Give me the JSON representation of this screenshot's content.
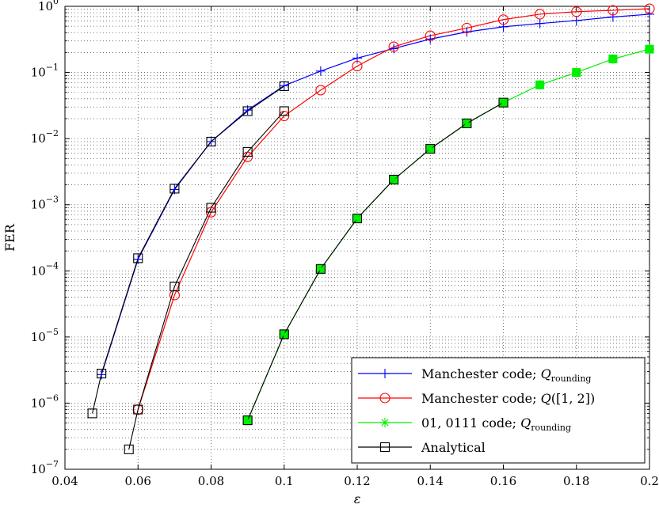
{
  "chart_data": {
    "type": "line",
    "xlabel": "ε",
    "ylabel": "FER",
    "xlim": [
      0.04,
      0.2
    ],
    "ylim": [
      1e-07,
      1
    ],
    "yscale": "log",
    "grid": true,
    "legend_position": "bottom-right",
    "x_ticks": [
      0.04,
      0.06,
      0.08,
      0.1,
      0.12,
      0.14,
      0.16,
      0.18,
      0.2
    ],
    "x_tick_labels": [
      "0.04",
      "0.06",
      "0.08",
      "0.1",
      "0.12",
      "0.14",
      "0.16",
      "0.18",
      "0.2"
    ],
    "y_ticks": [
      1e-07,
      1e-06,
      1e-05,
      0.0001,
      0.001,
      0.01,
      0.1,
      1
    ],
    "y_tick_labels": [
      {
        "base": "10",
        "exp": "−7"
      },
      {
        "base": "10",
        "exp": "−6"
      },
      {
        "base": "10",
        "exp": "−5"
      },
      {
        "base": "10",
        "exp": "−4"
      },
      {
        "base": "10",
        "exp": "−3"
      },
      {
        "base": "10",
        "exp": "−2"
      },
      {
        "base": "10",
        "exp": "−1"
      },
      {
        "base": "10",
        "exp": "0"
      }
    ],
    "series": [
      {
        "name": "Manchester code; Q_rounding",
        "legend_main": "Manchester code; ",
        "legend_q": "Q",
        "legend_sub": "rounding",
        "legend_tail": "",
        "color": "#0000ff",
        "marker": "plus",
        "x": [
          0.05,
          0.06,
          0.07,
          0.08,
          0.09,
          0.1,
          0.11,
          0.12,
          0.13,
          0.14,
          0.15,
          0.16,
          0.17,
          0.18,
          0.19,
          0.2
        ],
        "y": [
          2.7e-06,
          0.00015,
          0.0017,
          0.009,
          0.027,
          0.063,
          0.105,
          0.165,
          0.23,
          0.32,
          0.41,
          0.49,
          0.55,
          0.61,
          0.69,
          0.76
        ]
      },
      {
        "name": "Manchester code; Q([1,2])",
        "legend_main": "Manchester code; ",
        "legend_q": "Q",
        "legend_sub": "",
        "legend_tail": "([1, 2])",
        "color": "#ff0000",
        "marker": "circle",
        "x": [
          0.06,
          0.07,
          0.08,
          0.09,
          0.1,
          0.11,
          0.12,
          0.13,
          0.14,
          0.15,
          0.16,
          0.17,
          0.18,
          0.19,
          0.2
        ],
        "y": [
          8e-07,
          4.3e-05,
          0.00077,
          0.0053,
          0.022,
          0.054,
          0.125,
          0.245,
          0.36,
          0.47,
          0.63,
          0.76,
          0.83,
          0.87,
          0.92
        ]
      },
      {
        "name": "01, 0111 code; Q_rounding",
        "legend_main": "01, 0111 code; ",
        "legend_q": "Q",
        "legend_sub": "rounding",
        "legend_tail": "",
        "color": "#00ee00",
        "marker": "star",
        "x": [
          0.09,
          0.1,
          0.11,
          0.12,
          0.13,
          0.14,
          0.15,
          0.16,
          0.17,
          0.18,
          0.19,
          0.2
        ],
        "y": [
          5.5e-07,
          1.1e-05,
          0.000107,
          0.00062,
          0.0024,
          0.007,
          0.017,
          0.035,
          0.065,
          0.1,
          0.16,
          0.225
        ]
      },
      {
        "name": "Analytical",
        "legend_main": "Analytical",
        "legend_q": "",
        "legend_sub": "",
        "legend_tail": "",
        "color": "#000000",
        "marker": "square",
        "segments": [
          {
            "x": [
              0.0475,
              0.05,
              0.06,
              0.07,
              0.08,
              0.09,
              0.1
            ],
            "y": [
              7e-07,
              2.8e-06,
              0.000155,
              0.00175,
              0.009,
              0.026,
              0.062
            ]
          },
          {
            "x": [
              0.0575,
              0.06,
              0.07,
              0.08,
              0.09,
              0.1
            ],
            "y": [
              2e-07,
              8e-07,
              5.8e-05,
              0.0009,
              0.0063,
              0.026
            ]
          },
          {
            "x": [
              0.09,
              0.1,
              0.11,
              0.12,
              0.13,
              0.14,
              0.15,
              0.16
            ],
            "y": [
              5.5e-07,
              1.1e-05,
              0.000107,
              0.00062,
              0.0024,
              0.007,
              0.017,
              0.035
            ]
          }
        ]
      }
    ]
  }
}
